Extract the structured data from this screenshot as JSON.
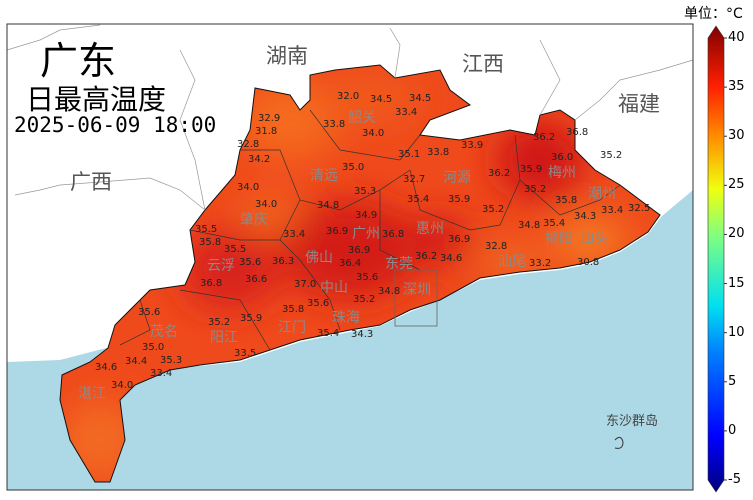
{
  "title": {
    "region": "广东",
    "product": "日最高温度",
    "datetime": "2025-06-09 18:00"
  },
  "neighbors": [
    "湖南",
    "江西",
    "福建",
    "广西"
  ],
  "islands_label": "东沙群岛",
  "colorbar": {
    "unit_label": "单位：°C",
    "ticks": [
      "40",
      "35",
      "30",
      "25",
      "20",
      "15",
      "10",
      "5",
      "0",
      "-5"
    ],
    "range": [
      -5,
      40
    ],
    "colormap": "jet",
    "extend": "both"
  },
  "colors": {
    "sea": "#add8e6",
    "land_outside": "#ffffff",
    "hot": "#e8281a",
    "warm": "#f26a1b",
    "very_hot": "#c9140f"
  },
  "cities": [
    "韶关",
    "清远",
    "河源",
    "梅州",
    "潮州",
    "揭阳",
    "汕头",
    "汕尾",
    "惠州",
    "东莞",
    "深圳",
    "广州",
    "佛山",
    "肇庆",
    "云浮",
    "江门",
    "中山",
    "珠海",
    "阳江",
    "茂名",
    "湛江"
  ],
  "stations": [
    "32.0",
    "34.5",
    "34.5",
    "33.4",
    "32.9",
    "31.8",
    "32.8",
    "33.8",
    "34.0",
    "34.2",
    "35.0",
    "35.1",
    "33.8",
    "33.9",
    "34.0",
    "35.3",
    "32.7",
    "35.4",
    "34.0",
    "34.8",
    "34.9",
    "36.2",
    "35.9",
    "36.2",
    "36.8",
    "35.2",
    "36.0",
    "35.2",
    "35.9",
    "35.2",
    "35.8",
    "34.3",
    "33.4",
    "32.5",
    "35.4",
    "34.8",
    "30.8",
    "33.2",
    "32.8",
    "34.6",
    "36.2",
    "36.9",
    "36.8",
    "36.9",
    "36.9",
    "33.4",
    "35.5",
    "35.8",
    "35.5",
    "35.6",
    "36.8",
    "36.3",
    "36.6",
    "37.0",
    "35.6",
    "35.8",
    "35.4",
    "35.9",
    "35.2",
    "34.3",
    "36.4",
    "35.6",
    "34.8",
    "35.6",
    "35.0",
    "34.4",
    "35.3",
    "34.6",
    "33.4",
    "34.0",
    "35.2",
    "33.5"
  ]
}
